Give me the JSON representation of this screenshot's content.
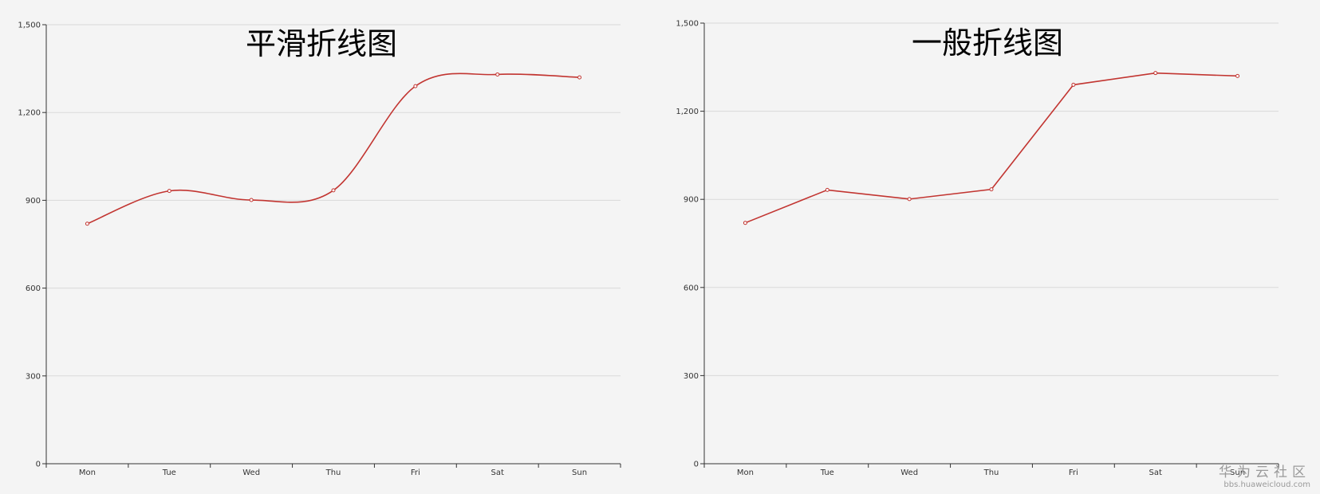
{
  "chart_data": [
    {
      "type": "line",
      "title": "平滑折线图",
      "smooth": true,
      "categories": [
        "Mon",
        "Tue",
        "Wed",
        "Thu",
        "Fri",
        "Sat",
        "Sun"
      ],
      "series": [
        {
          "values": [
            820,
            932,
            901,
            934,
            1290,
            1330,
            1320
          ]
        }
      ],
      "ylim": [
        0,
        1500
      ],
      "yticks": [
        0,
        300,
        600,
        900,
        1200,
        1500
      ],
      "ytick_labels": [
        "0",
        "300",
        "600",
        "900",
        "1,200",
        "1,500"
      ],
      "grid": true,
      "line_color": "#c23531"
    },
    {
      "type": "line",
      "title": "一般折线图",
      "smooth": false,
      "categories": [
        "Mon",
        "Tue",
        "Wed",
        "Thu",
        "Fri",
        "Sat",
        "Sun"
      ],
      "series": [
        {
          "values": [
            820,
            932,
            901,
            934,
            1290,
            1330,
            1320
          ]
        }
      ],
      "ylim": [
        0,
        1500
      ],
      "yticks": [
        0,
        300,
        600,
        900,
        1200,
        1500
      ],
      "ytick_labels": [
        "0",
        "300",
        "600",
        "900",
        "1,200",
        "1,500"
      ],
      "grid": true,
      "line_color": "#c23531"
    }
  ],
  "watermark": {
    "main": "华为云社区",
    "sub": "bbs.huaweicloud.com"
  }
}
